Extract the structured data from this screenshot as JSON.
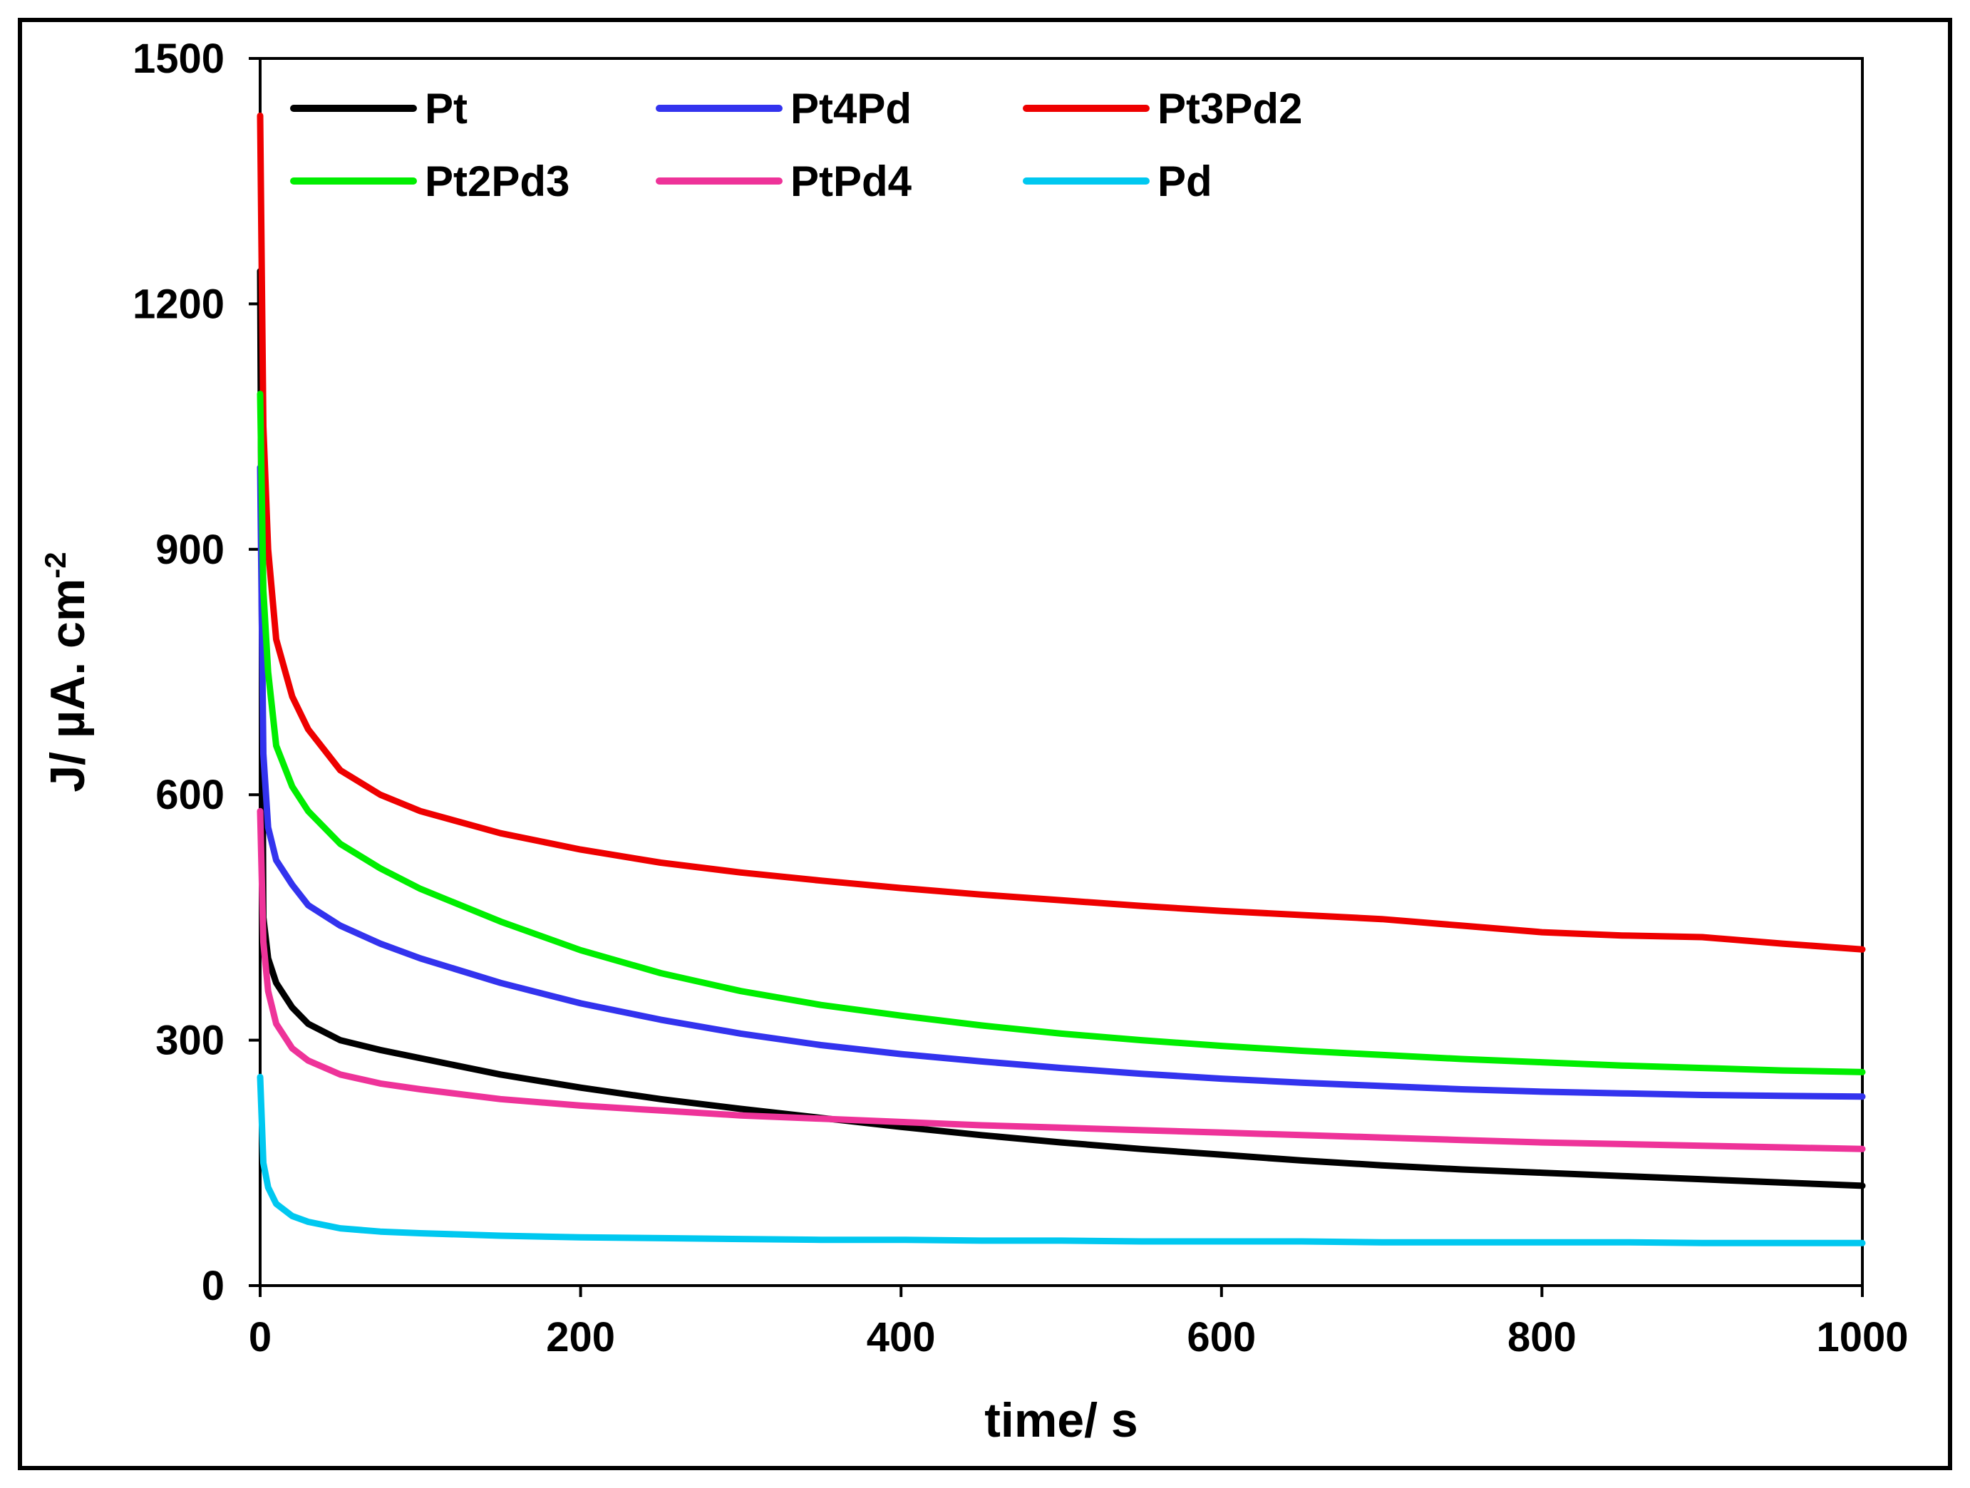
{
  "chart_data": {
    "type": "line",
    "title": "",
    "xlabel": "time/ s",
    "ylabel_main": "J/ µA. cm",
    "ylabel_sup": "-2",
    "xlim": [
      0,
      1000
    ],
    "ylim": [
      0,
      1500
    ],
    "xticks": [
      0,
      200,
      400,
      600,
      800,
      1000
    ],
    "yticks": [
      0,
      300,
      600,
      900,
      1200,
      1500
    ],
    "grid": false,
    "legend_position": "top",
    "x": [
      0,
      2,
      5,
      10,
      20,
      30,
      50,
      75,
      100,
      150,
      200,
      250,
      300,
      350,
      400,
      450,
      500,
      550,
      600,
      650,
      700,
      750,
      800,
      850,
      900,
      950,
      1000
    ],
    "series": [
      {
        "name": "Pt",
        "color": "#000000",
        "values": [
          1240,
          450,
          400,
          370,
          340,
          320,
          300,
          288,
          278,
          258,
          242,
          228,
          216,
          205,
          194,
          184,
          175,
          167,
          160,
          153,
          147,
          142,
          138,
          134,
          130,
          126,
          122
        ]
      },
      {
        "name": "Pt4Pd",
        "color": "#3333ee",
        "values": [
          1000,
          650,
          560,
          520,
          490,
          465,
          440,
          418,
          400,
          370,
          345,
          325,
          308,
          294,
          283,
          274,
          266,
          259,
          253,
          248,
          244,
          240,
          237,
          235,
          233,
          232,
          231
        ]
      },
      {
        "name": "Pt3Pd2",
        "color": "#ee0000",
        "values": [
          1430,
          1050,
          900,
          790,
          720,
          680,
          630,
          600,
          580,
          553,
          533,
          517,
          505,
          495,
          486,
          478,
          471,
          464,
          458,
          453,
          448,
          440,
          432,
          428,
          426,
          418,
          411
        ]
      },
      {
        "name": "Pt2Pd3",
        "color": "#00ee00",
        "values": [
          1090,
          850,
          750,
          660,
          610,
          580,
          540,
          510,
          485,
          445,
          410,
          382,
          360,
          343,
          330,
          318,
          308,
          300,
          293,
          287,
          282,
          277,
          273,
          269,
          266,
          263,
          261
        ]
      },
      {
        "name": "PtPd4",
        "color": "#ee3399",
        "values": [
          580,
          420,
          360,
          320,
          290,
          275,
          258,
          247,
          240,
          228,
          220,
          214,
          208,
          204,
          200,
          196,
          193,
          190,
          187,
          184,
          181,
          178,
          175,
          173,
          171,
          169,
          167
        ]
      },
      {
        "name": "Pd",
        "color": "#00c8f0",
        "values": [
          255,
          150,
          120,
          100,
          85,
          78,
          70,
          66,
          64,
          61,
          59,
          58,
          57,
          56,
          56,
          55,
          55,
          54,
          54,
          54,
          53,
          53,
          53,
          53,
          52,
          52,
          52
        ]
      }
    ]
  }
}
